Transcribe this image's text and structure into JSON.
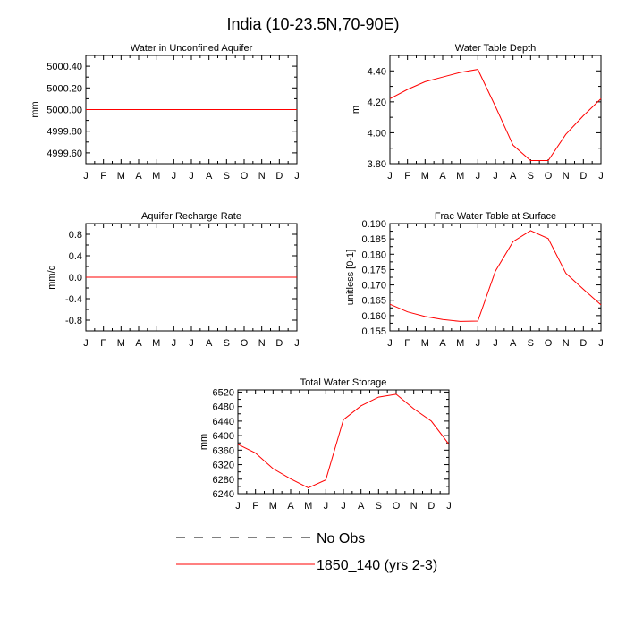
{
  "page_title": "India (10-23.5N,70-90E)",
  "colors": {
    "model": "#ff0000",
    "obs": "#000000",
    "axis": "#000000"
  },
  "legend": {
    "entries": [
      {
        "label": "No Obs",
        "style": "dashed",
        "color": "#000000"
      },
      {
        "label": "1850_140 (yrs 2-3)",
        "style": "solid",
        "color": "#ff0000"
      }
    ]
  },
  "chart_data": [
    {
      "id": "unconfined-aquifer",
      "type": "line",
      "title": "Water in Unconfined Aquifer",
      "ylabel": "mm",
      "categories": [
        "J",
        "F",
        "M",
        "A",
        "M",
        "J",
        "J",
        "A",
        "S",
        "O",
        "N",
        "D",
        "J"
      ],
      "ylim": [
        4999.5,
        5000.5
      ],
      "yticks": [
        4999.6,
        4999.8,
        5000.0,
        5000.2,
        5000.4
      ],
      "ytick_labels": [
        "4999.60",
        "4999.80",
        "5000.00",
        "5000.20",
        "5000.40"
      ],
      "series": [
        {
          "name": "1850_140 (yrs 2-3)",
          "values": [
            5000,
            5000,
            5000,
            5000,
            5000,
            5000,
            5000,
            5000,
            5000,
            5000,
            5000,
            5000,
            5000
          ]
        }
      ]
    },
    {
      "id": "water-table-depth",
      "type": "line",
      "title": "Water Table Depth",
      "ylabel": "m",
      "categories": [
        "J",
        "F",
        "M",
        "A",
        "M",
        "J",
        "J",
        "A",
        "S",
        "O",
        "N",
        "D",
        "J"
      ],
      "ylim": [
        3.8,
        4.5
      ],
      "yticks": [
        3.8,
        4.0,
        4.2,
        4.4
      ],
      "ytick_labels": [
        "3.80",
        "4.00",
        "4.20",
        "4.40"
      ],
      "series": [
        {
          "name": "1850_140 (yrs 2-3)",
          "values": [
            4.22,
            4.28,
            4.33,
            4.36,
            4.39,
            4.41,
            4.17,
            3.92,
            3.82,
            3.82,
            3.99,
            4.11,
            4.22
          ]
        }
      ]
    },
    {
      "id": "recharge-rate",
      "type": "line",
      "title": "Aquifer Recharge Rate",
      "ylabel": "mm/d",
      "categories": [
        "J",
        "F",
        "M",
        "A",
        "M",
        "J",
        "J",
        "A",
        "S",
        "O",
        "N",
        "D",
        "J"
      ],
      "ylim": [
        -1.0,
        1.0
      ],
      "yticks": [
        -0.8,
        -0.4,
        0.0,
        0.4,
        0.8
      ],
      "ytick_labels": [
        "-0.8",
        "-0.4",
        "0.0",
        "0.4",
        "0.8"
      ],
      "series": [
        {
          "name": "1850_140 (yrs 2-3)",
          "values": [
            0,
            0,
            0,
            0,
            0,
            0,
            0,
            0,
            0,
            0,
            0,
            0,
            0
          ]
        }
      ]
    },
    {
      "id": "frac-water-table",
      "type": "line",
      "title": "Frac Water Table at Surface",
      "ylabel": "unitless [0-1]",
      "categories": [
        "J",
        "F",
        "M",
        "A",
        "M",
        "J",
        "J",
        "A",
        "S",
        "O",
        "N",
        "D",
        "J"
      ],
      "ylim": [
        0.155,
        0.19
      ],
      "yticks": [
        0.155,
        0.16,
        0.165,
        0.17,
        0.175,
        0.18,
        0.185,
        0.19
      ],
      "ytick_labels": [
        "0.155",
        "0.160",
        "0.165",
        "0.170",
        "0.175",
        "0.180",
        "0.185",
        "0.190"
      ],
      "series": [
        {
          "name": "1850_140 (yrs 2-3)",
          "values": [
            0.1637,
            0.1612,
            0.1597,
            0.1587,
            0.1581,
            0.1582,
            0.1745,
            0.1841,
            0.1877,
            0.1851,
            0.1738,
            0.1686,
            0.1635
          ]
        }
      ]
    },
    {
      "id": "total-water-storage",
      "type": "line",
      "title": "Total Water Storage",
      "ylabel": "mm",
      "categories": [
        "J",
        "F",
        "M",
        "A",
        "M",
        "J",
        "J",
        "A",
        "S",
        "O",
        "N",
        "D",
        "J"
      ],
      "ylim": [
        6240,
        6526
      ],
      "yticks": [
        6240,
        6280,
        6320,
        6360,
        6400,
        6440,
        6480,
        6520
      ],
      "ytick_labels": [
        "6240",
        "6280",
        "6320",
        "6360",
        "6400",
        "6440",
        "6480",
        "6520"
      ],
      "series": [
        {
          "name": "1850_140 (yrs 2-3)",
          "values": [
            6376,
            6352,
            6309,
            6281,
            6256,
            6278,
            6444,
            6482,
            6506,
            6514,
            6474,
            6440,
            6376
          ]
        }
      ]
    }
  ]
}
